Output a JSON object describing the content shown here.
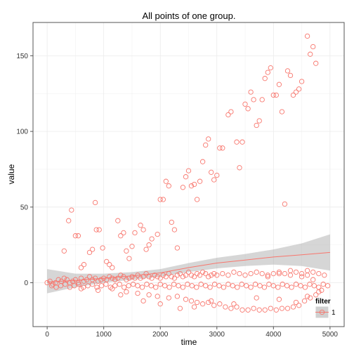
{
  "chart_data": {
    "type": "scatter",
    "title": "All points of one group.",
    "xlabel": "time",
    "ylabel": "value",
    "xlim": [
      -250,
      5250
    ],
    "ylim": [
      -29,
      172
    ],
    "x_ticks": [
      0,
      1000,
      2000,
      3000,
      4000,
      5000
    ],
    "y_ticks": [
      0,
      50,
      100,
      150
    ],
    "grid": true,
    "legend": {
      "title": "filter",
      "placement": "right",
      "entries": [
        "1"
      ]
    },
    "colors": {
      "points": "#F8766D",
      "smooth_line": "#F8766D",
      "ribbon": "#999999",
      "panel_border": "#555555",
      "grid": "#EBEBEB"
    },
    "series": [
      {
        "name": "1",
        "points": [
          [
            0,
            0
          ],
          [
            50,
            1
          ],
          [
            100,
            -1
          ],
          [
            150,
            0
          ],
          [
            200,
            2
          ],
          [
            250,
            1
          ],
          [
            300,
            3
          ],
          [
            350,
            2
          ],
          [
            400,
            0
          ],
          [
            450,
            1
          ],
          [
            500,
            2
          ],
          [
            550,
            0
          ],
          [
            600,
            3
          ],
          [
            650,
            1
          ],
          [
            700,
            2
          ],
          [
            750,
            4
          ],
          [
            800,
            2
          ],
          [
            850,
            3
          ],
          [
            900,
            1
          ],
          [
            950,
            2
          ],
          [
            1000,
            3
          ],
          [
            1050,
            2
          ],
          [
            1100,
            4
          ],
          [
            1150,
            3
          ],
          [
            1200,
            2
          ],
          [
            1250,
            3
          ],
          [
            1300,
            5
          ],
          [
            1350,
            4
          ],
          [
            1400,
            2
          ],
          [
            1450,
            3
          ],
          [
            1500,
            4
          ],
          [
            1550,
            3
          ],
          [
            1600,
            5
          ],
          [
            1650,
            3
          ],
          [
            1700,
            4
          ],
          [
            1750,
            6
          ],
          [
            1800,
            4
          ],
          [
            1850,
            3
          ],
          [
            1900,
            5
          ],
          [
            1950,
            4
          ],
          [
            2000,
            3
          ],
          [
            2050,
            5
          ],
          [
            2100,
            4
          ],
          [
            2150,
            6
          ],
          [
            2200,
            4
          ],
          [
            2250,
            3
          ],
          [
            2300,
            5
          ],
          [
            2350,
            6
          ],
          [
            2400,
            4
          ],
          [
            2450,
            5
          ],
          [
            2500,
            7
          ],
          [
            2550,
            5
          ],
          [
            2600,
            4
          ],
          [
            2650,
            6
          ],
          [
            2700,
            5
          ],
          [
            2750,
            7
          ],
          [
            2800,
            6
          ],
          [
            2850,
            4
          ],
          [
            2900,
            5
          ],
          [
            2950,
            6
          ],
          [
            3000,
            5
          ],
          [
            3100,
            6
          ],
          [
            3200,
            5
          ],
          [
            3300,
            7
          ],
          [
            3400,
            6
          ],
          [
            3500,
            5
          ],
          [
            3600,
            6
          ],
          [
            3700,
            7
          ],
          [
            3800,
            6
          ],
          [
            3900,
            5
          ],
          [
            4000,
            6
          ],
          [
            4100,
            7
          ],
          [
            4200,
            6
          ],
          [
            4300,
            5
          ],
          [
            4400,
            7
          ],
          [
            4500,
            6
          ],
          [
            4600,
            5
          ],
          [
            4700,
            7
          ],
          [
            4800,
            6
          ],
          [
            4900,
            5
          ],
          [
            80,
            -2
          ],
          [
            160,
            -3
          ],
          [
            240,
            -2
          ],
          [
            320,
            -1
          ],
          [
            400,
            -3
          ],
          [
            480,
            -2
          ],
          [
            560,
            -1
          ],
          [
            640,
            -3
          ],
          [
            720,
            -2
          ],
          [
            800,
            -1
          ],
          [
            880,
            -3
          ],
          [
            960,
            -2
          ],
          [
            1040,
            -1
          ],
          [
            1120,
            -3
          ],
          [
            1200,
            -2
          ],
          [
            1280,
            -1
          ],
          [
            1360,
            -3
          ],
          [
            1440,
            -2
          ],
          [
            1520,
            -1
          ],
          [
            1600,
            -2
          ],
          [
            1680,
            -3
          ],
          [
            1760,
            -1
          ],
          [
            1840,
            -2
          ],
          [
            1920,
            -3
          ],
          [
            2000,
            -1
          ],
          [
            2080,
            -2
          ],
          [
            2160,
            -3
          ],
          [
            2240,
            -1
          ],
          [
            2320,
            -2
          ],
          [
            2400,
            -3
          ],
          [
            2480,
            -1
          ],
          [
            2560,
            -2
          ],
          [
            2640,
            -3
          ],
          [
            2720,
            -1
          ],
          [
            2800,
            -2
          ],
          [
            2880,
            -3
          ],
          [
            2960,
            -1
          ],
          [
            3040,
            -2
          ],
          [
            3120,
            -3
          ],
          [
            3200,
            -1
          ],
          [
            3280,
            -2
          ],
          [
            3360,
            -3
          ],
          [
            3440,
            -1
          ],
          [
            3520,
            -2
          ],
          [
            3600,
            -3
          ],
          [
            3680,
            -1
          ],
          [
            3760,
            -2
          ],
          [
            3840,
            -3
          ],
          [
            3920,
            -1
          ],
          [
            4000,
            -2
          ],
          [
            4080,
            -3
          ],
          [
            4160,
            -1
          ],
          [
            4240,
            -2
          ],
          [
            4320,
            -3
          ],
          [
            4400,
            -1
          ],
          [
            4480,
            -2
          ],
          [
            4560,
            -3
          ],
          [
            4640,
            -1
          ],
          [
            4720,
            -2
          ],
          [
            4800,
            -3
          ],
          [
            4880,
            -1
          ],
          [
            4960,
            -2
          ],
          [
            600,
            -4
          ],
          [
            900,
            -5
          ],
          [
            1150,
            -4
          ],
          [
            1400,
            -6
          ],
          [
            1600,
            -7
          ],
          [
            1800,
            -8
          ],
          [
            1950,
            -9
          ],
          [
            2150,
            -10
          ],
          [
            2300,
            -9
          ],
          [
            2450,
            -11
          ],
          [
            2550,
            -12
          ],
          [
            2650,
            -13
          ],
          [
            2750,
            -14
          ],
          [
            2850,
            -13
          ],
          [
            2950,
            -15
          ],
          [
            3050,
            -14
          ],
          [
            3150,
            -16
          ],
          [
            3250,
            -17
          ],
          [
            3350,
            -16
          ],
          [
            3450,
            -18
          ],
          [
            3550,
            -18
          ],
          [
            3650,
            -17
          ],
          [
            3750,
            -18
          ],
          [
            3850,
            -18
          ],
          [
            3950,
            -17
          ],
          [
            4050,
            -18
          ],
          [
            4150,
            -17
          ],
          [
            4250,
            -17
          ],
          [
            4350,
            -16
          ],
          [
            4450,
            -15
          ],
          [
            4550,
            -12
          ],
          [
            4650,
            -10
          ],
          [
            4750,
            -8
          ],
          [
            4850,
            -5
          ],
          [
            1300,
            -8
          ],
          [
            1700,
            -12
          ],
          [
            2000,
            -14
          ],
          [
            2350,
            -17
          ],
          [
            2600,
            -16
          ],
          [
            2900,
            -12
          ],
          [
            3300,
            -14
          ],
          [
            3700,
            -10
          ],
          [
            4100,
            -11
          ],
          [
            4400,
            -13
          ],
          [
            4600,
            -9
          ],
          [
            4800,
            -6
          ],
          [
            300,
            21
          ],
          [
            380,
            41
          ],
          [
            430,
            48
          ],
          [
            500,
            31
          ],
          [
            550,
            31
          ],
          [
            600,
            10
          ],
          [
            650,
            12
          ],
          [
            750,
            20
          ],
          [
            800,
            22
          ],
          [
            850,
            53
          ],
          [
            870,
            35
          ],
          [
            920,
            35
          ],
          [
            980,
            23
          ],
          [
            1050,
            14
          ],
          [
            1100,
            12
          ],
          [
            1150,
            10
          ],
          [
            1200,
            2
          ],
          [
            1250,
            41
          ],
          [
            1300,
            31
          ],
          [
            1350,
            33
          ],
          [
            1400,
            21
          ],
          [
            1450,
            16
          ],
          [
            1500,
            24
          ],
          [
            1550,
            33
          ],
          [
            1650,
            38
          ],
          [
            1700,
            35
          ],
          [
            1750,
            22
          ],
          [
            1800,
            25
          ],
          [
            1850,
            29
          ],
          [
            1950,
            32
          ],
          [
            2000,
            55
          ],
          [
            2050,
            55
          ],
          [
            2100,
            67
          ],
          [
            2150,
            64
          ],
          [
            2200,
            40
          ],
          [
            2250,
            35
          ],
          [
            2300,
            23
          ],
          [
            2400,
            63
          ],
          [
            2450,
            70
          ],
          [
            2500,
            74
          ],
          [
            2550,
            64
          ],
          [
            2600,
            65
          ],
          [
            2650,
            55
          ],
          [
            2700,
            67
          ],
          [
            2750,
            80
          ],
          [
            2800,
            91
          ],
          [
            2850,
            95
          ],
          [
            2900,
            73
          ],
          [
            2950,
            68
          ],
          [
            3000,
            71
          ],
          [
            3050,
            89
          ],
          [
            3100,
            89
          ],
          [
            3200,
            111
          ],
          [
            3250,
            113
          ],
          [
            3350,
            93
          ],
          [
            3400,
            76
          ],
          [
            3450,
            93
          ],
          [
            3500,
            118
          ],
          [
            3550,
            115
          ],
          [
            3600,
            126
          ],
          [
            3650,
            121
          ],
          [
            3700,
            104
          ],
          [
            3750,
            107
          ],
          [
            3800,
            121
          ],
          [
            3850,
            135
          ],
          [
            3900,
            139
          ],
          [
            3950,
            142
          ],
          [
            4000,
            124
          ],
          [
            4050,
            124
          ],
          [
            4100,
            131
          ],
          [
            4150,
            113
          ],
          [
            4200,
            52
          ],
          [
            4250,
            140
          ],
          [
            4300,
            137
          ],
          [
            4350,
            124
          ],
          [
            4400,
            126
          ],
          [
            4450,
            128
          ],
          [
            4500,
            133
          ],
          [
            4600,
            163
          ],
          [
            4650,
            151
          ],
          [
            4700,
            156
          ],
          [
            4750,
            145
          ],
          [
            4600,
            8
          ],
          [
            4700,
            2
          ],
          [
            4500,
            4
          ],
          [
            4300,
            8
          ],
          [
            4100,
            6
          ],
          [
            3900,
            4
          ]
        ]
      }
    ],
    "smooth": [
      {
        "x": 0,
        "y": 0.5,
        "lo": -7,
        "hi": 9
      },
      {
        "x": 500,
        "y": 1.5,
        "lo": -3,
        "hi": 6
      },
      {
        "x": 1000,
        "y": 3,
        "lo": 0,
        "hi": 6
      },
      {
        "x": 1500,
        "y": 4.5,
        "lo": 2,
        "hi": 7
      },
      {
        "x": 2000,
        "y": 6.5,
        "lo": 4,
        "hi": 9
      },
      {
        "x": 2500,
        "y": 10,
        "lo": 7,
        "hi": 13
      },
      {
        "x": 3000,
        "y": 13,
        "lo": 9.5,
        "hi": 16.5
      },
      {
        "x": 3500,
        "y": 15,
        "lo": 11,
        "hi": 19
      },
      {
        "x": 4000,
        "y": 17,
        "lo": 12,
        "hi": 22
      },
      {
        "x": 4500,
        "y": 18.5,
        "lo": 11,
        "hi": 26
      },
      {
        "x": 5000,
        "y": 20,
        "lo": 8,
        "hi": 32
      }
    ]
  }
}
